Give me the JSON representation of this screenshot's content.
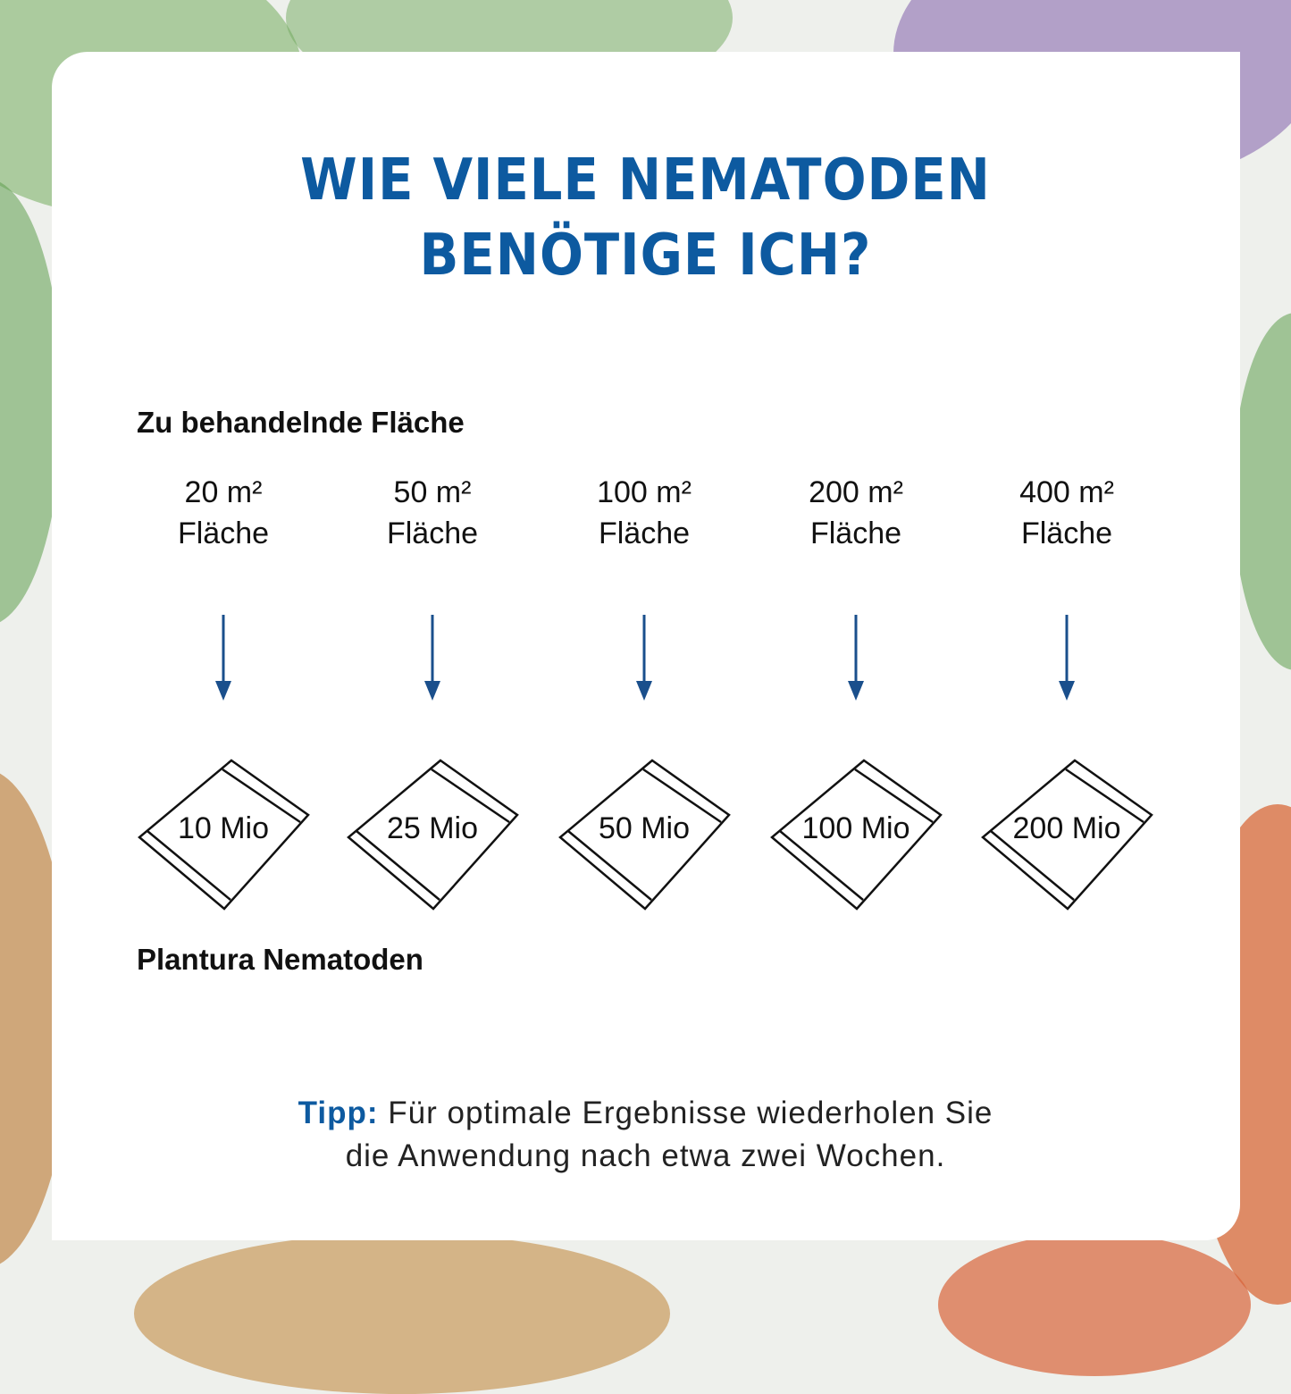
{
  "title_lines": [
    "WIE VIELE NEMATODEN",
    "BENÖTIGE ICH?"
  ],
  "area_label": "Zu behandelnde Fläche",
  "product_label": "Plantura Nematoden",
  "columns": [
    {
      "area": "20 m²",
      "unit": "Fläche",
      "amount": "10 Mio"
    },
    {
      "area": "50 m²",
      "unit": "Fläche",
      "amount": "25 Mio"
    },
    {
      "area": "100 m²",
      "unit": "Fläche",
      "amount": "50 Mio"
    },
    {
      "area": "200 m²",
      "unit": "Fläche",
      "amount": "100 Mio"
    },
    {
      "area": "400 m²",
      "unit": "Fläche",
      "amount": "200 Mio"
    }
  ],
  "tip": {
    "label": "Tipp:",
    "line1": "Für optimale Ergebnisse wiederholen Sie",
    "line2": "die Anwendung nach etwa zwei Wochen."
  },
  "colors": {
    "accent": "#0d5aa0",
    "arrow": "#1a4f8c"
  },
  "icons": [
    "arrow-down-icon",
    "package-icon"
  ]
}
